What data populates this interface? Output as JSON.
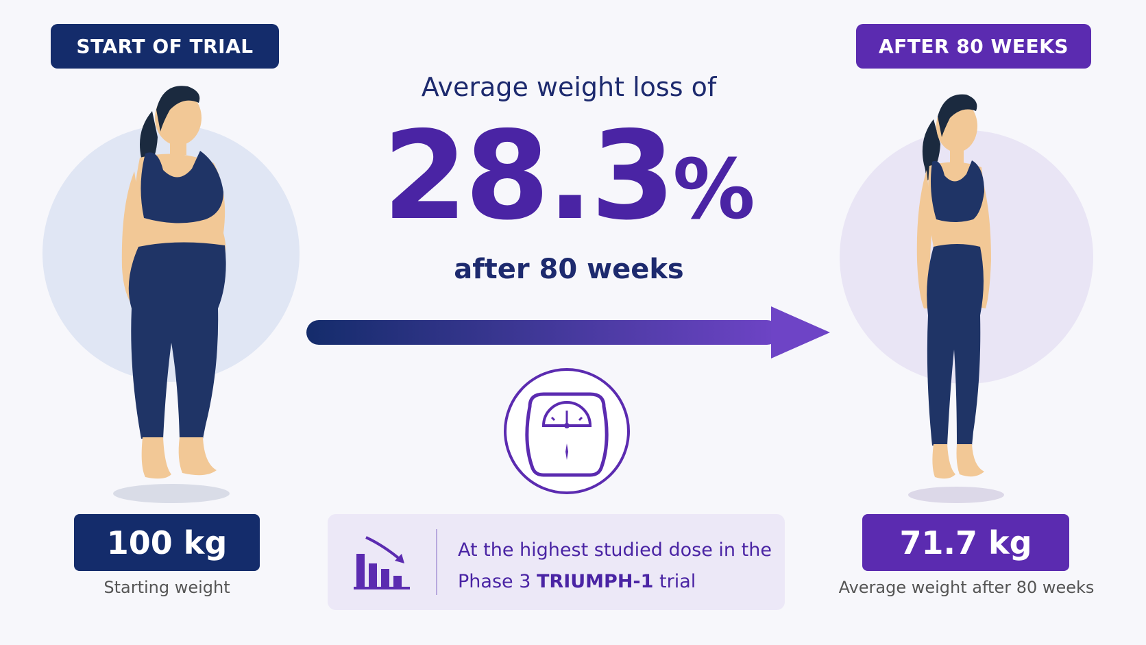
{
  "labels": {
    "start": "START OF TRIAL",
    "after": "AFTER 80 WEEKS"
  },
  "headline": "Average weight loss of",
  "result": {
    "number": "28.3",
    "unit": "%"
  },
  "subline": "after 80 weeks",
  "weights": {
    "start_value": "100 kg",
    "start_caption": "Starting weight",
    "end_value": "71.7 kg",
    "end_caption": "Average weight after 80 weeks"
  },
  "info": {
    "line1": "At the highest studied dose in the",
    "line2_prefix": "Phase 3",
    "line2_trial": "TRIUMPH-1",
    "line2_suffix": "trial"
  },
  "colors": {
    "navy": "#142c6b",
    "purple": "#5b2bb0",
    "text_purple": "#4a24a4",
    "skin": "#f2c896",
    "clothing": "#1f3466",
    "hair": "#1b2a3f"
  },
  "icons": {
    "arrow": "arrow-right-icon",
    "scale": "scale-icon",
    "chart": "declining-bar-chart-icon"
  }
}
